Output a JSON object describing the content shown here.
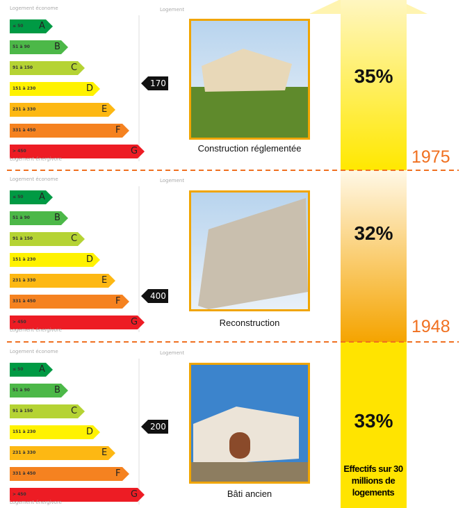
{
  "label_scale": {
    "top": "Logement économe",
    "bottom": "Logement énergivore",
    "header": "Logement",
    "bands": [
      {
        "range": "≤ 50",
        "letter": "A"
      },
      {
        "range": "51 à 90",
        "letter": "B"
      },
      {
        "range": "91 à 150",
        "letter": "C"
      },
      {
        "range": "151 à 230",
        "letter": "D"
      },
      {
        "range": "231 à 330",
        "letter": "E"
      },
      {
        "range": "331 à 450",
        "letter": "F"
      },
      {
        "range": "> 450",
        "letter": "G"
      }
    ]
  },
  "panels": [
    {
      "indicator": "170",
      "caption": "Construction réglementée",
      "percentage": "35%"
    },
    {
      "indicator": "400",
      "caption": "Reconstruction",
      "percentage": "32%"
    },
    {
      "indicator": "200",
      "caption": "Bâti ancien",
      "percentage": "33%"
    }
  ],
  "years": [
    "1975",
    "1948"
  ],
  "note": "Effectifs sur 30 millions de logements"
}
